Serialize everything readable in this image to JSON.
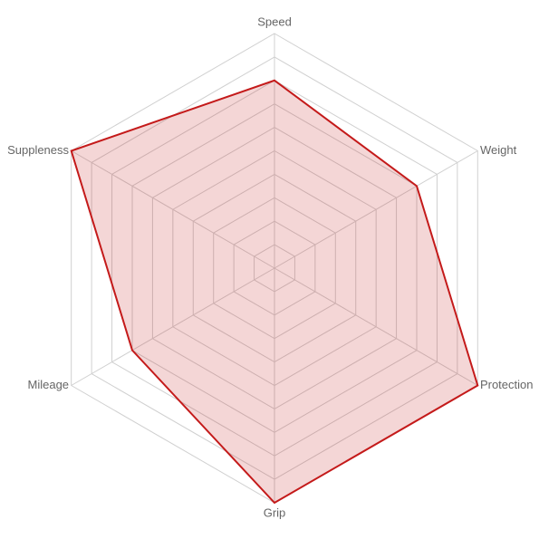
{
  "chart_data": {
    "type": "radar",
    "categories": [
      "Speed",
      "Weight",
      "Protection",
      "Grip",
      "Mileage",
      "Suppleness"
    ],
    "values": [
      8,
      7,
      10,
      10,
      7,
      10
    ],
    "color": "#c41a1a",
    "rlim": [
      0,
      10
    ],
    "rticks": [
      1,
      2,
      3,
      4,
      5,
      6,
      7,
      8,
      9,
      10
    ],
    "grid": true
  }
}
